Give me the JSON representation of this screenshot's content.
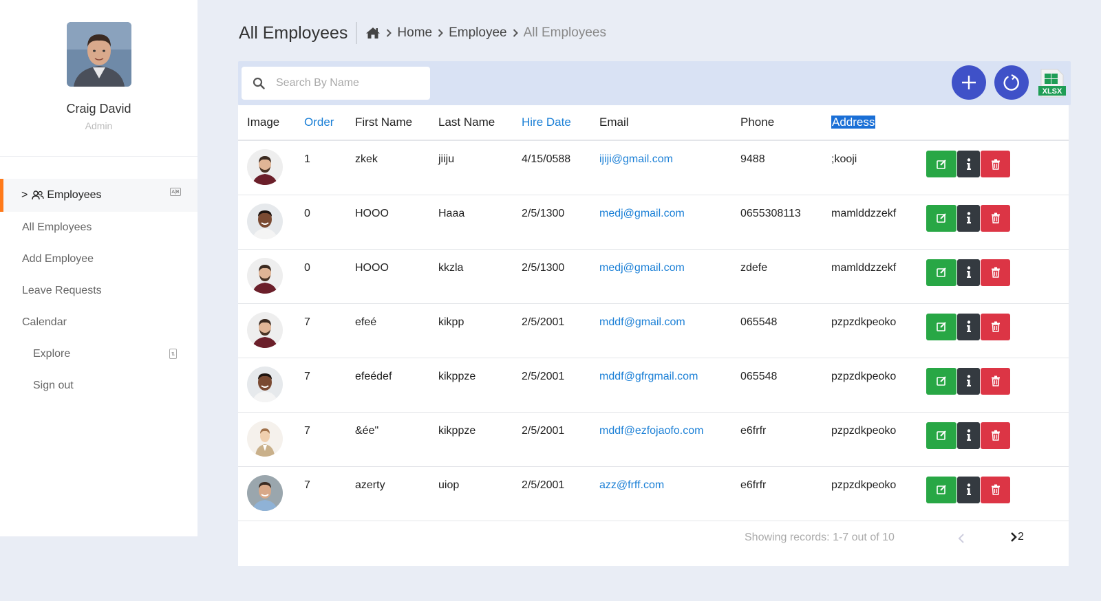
{
  "sidebar": {
    "user_name": "Craig David",
    "user_role": "Admin",
    "active_section": {
      "prefix": ">",
      "label": "Employees",
      "badge": "A|B"
    },
    "items": [
      {
        "label": "All Employees"
      },
      {
        "label": "Add Employee"
      },
      {
        "label": "Leave Requests"
      },
      {
        "label": "Calendar"
      }
    ],
    "sub_items": [
      {
        "label": "Explore"
      },
      {
        "label": "Sign out"
      }
    ]
  },
  "header": {
    "title": "All Employees",
    "breadcrumbs": [
      "Home",
      "Employee",
      "All Employees"
    ]
  },
  "toolbar": {
    "search_placeholder": "Search By Name",
    "xlsx_label": "XLSX"
  },
  "table": {
    "columns": [
      {
        "label": "Image"
      },
      {
        "label": "Order"
      },
      {
        "label": "First Name"
      },
      {
        "label": "Last Name"
      },
      {
        "label": "Hire Date"
      },
      {
        "label": "Email"
      },
      {
        "label": "Phone"
      },
      {
        "label": "Address"
      }
    ],
    "rows": [
      {
        "order": "1",
        "first_name": "zkek",
        "last_name": "jiiju",
        "hire_date": "4/15/0588",
        "email": "ijiji@gmail.com",
        "phone": "9488",
        "address": ";kooji",
        "avatar": "man-beard-maroon-shirt"
      },
      {
        "order": "0",
        "first_name": "HOOO",
        "last_name": "Haaa",
        "hire_date": "2/5/1300",
        "email": "medj@gmail.com",
        "phone": "0655308113",
        "address": "mamlddzzekf",
        "avatar": "man-smiling-white-shirt"
      },
      {
        "order": "0",
        "first_name": "HOOO",
        "last_name": "kkzla",
        "hire_date": "2/5/1300",
        "email": "medj@gmail.com",
        "phone": "zdefe",
        "address": "mamlddzzekf",
        "avatar": "man-beard-maroon-shirt"
      },
      {
        "order": "7",
        "first_name": "efeé",
        "last_name": "kikpp",
        "hire_date": "2/5/2001",
        "email": "mddf@gmail.com",
        "phone": "065548",
        "address": "pzpzdkpeoko",
        "avatar": "man-beard-maroon-shirt"
      },
      {
        "order": "7",
        "first_name": "efeédef",
        "last_name": "kikppze",
        "hire_date": "2/5/2001",
        "email": "mddf@gfrgmail.com",
        "phone": "065548",
        "address": "pzpzdkpeoko",
        "avatar": "man-smiling-white-shirt"
      },
      {
        "order": "7",
        "first_name": "&ée\"",
        "last_name": "kikppze",
        "hire_date": "2/5/2001",
        "email": "mddf@ezfojaofo.com",
        "phone": "e6frfr",
        "address": "pzpzdkpeoko",
        "avatar": "man-illustration-suit"
      },
      {
        "order": "7",
        "first_name": "azerty",
        "last_name": "uiop",
        "hire_date": "2/5/2001",
        "email": "azz@frff.com",
        "phone": "e6frfr",
        "address": "pzpzdkpeoko",
        "avatar": "man-smiling-blue-shirt"
      }
    ]
  },
  "pagination": {
    "records_text": "Showing records: 1-7 out of 10",
    "next_page": "2"
  },
  "colors": {
    "accent_orange": "#ff7a1a",
    "primary_blue": "#3f51c8",
    "link_blue": "#1a7fd6",
    "edit_green": "#28a745",
    "info_dark": "#343a40",
    "delete_red": "#dc3545"
  }
}
